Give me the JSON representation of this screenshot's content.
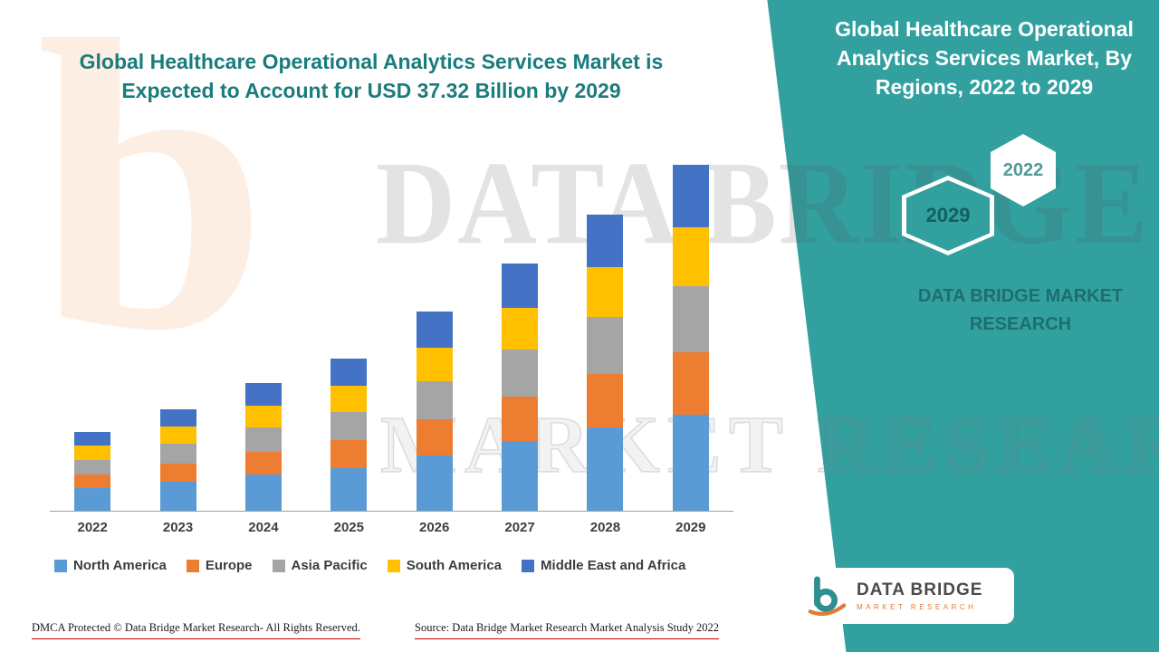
{
  "headline": "Global Healthcare Operational Analytics Services Market is Expected to Account for USD 37.32 Billion by 2029",
  "right_panel": {
    "title": "Global Healthcare Operational Analytics Services Market, By Regions, 2022 to 2029",
    "hex_2022": "2022",
    "hex_2029": "2029",
    "brand_text": "DATA BRIDGE MARKET RESEARCH",
    "teal": "#33A0A0"
  },
  "watermark": {
    "letter": "b",
    "line1": "DATA BRIDGE",
    "line2": "MARKET RESEARCH"
  },
  "logo": {
    "name": "DATA BRIDGE",
    "sub": "MARKET RESEARCH"
  },
  "footer": {
    "dmca": "DMCA Protected © Data Bridge Market Research- All Rights Reserved.",
    "source": "Source: Data Bridge Market Research Market Analysis Study 2022"
  },
  "chart_data": {
    "type": "bar",
    "stacked": true,
    "title": "Global Healthcare Operational Analytics Services Market, By Regions, 2022 to 2029",
    "xlabel": "",
    "ylabel": "",
    "grid": false,
    "legend_position": "bottom",
    "ylim": [
      0,
      40
    ],
    "units": "USD Billion",
    "total_2029": 37.32,
    "categories": [
      "2022",
      "2023",
      "2024",
      "2025",
      "2026",
      "2027",
      "2028",
      "2029"
    ],
    "series": [
      {
        "name": "North America",
        "color": "#5B9BD5",
        "values": [
          2.4,
          3.1,
          3.9,
          4.6,
          6.0,
          7.5,
          9.0,
          10.4
        ]
      },
      {
        "name": "Europe",
        "color": "#ED7D31",
        "values": [
          1.5,
          2.0,
          2.5,
          3.0,
          3.9,
          4.8,
          5.8,
          6.7
        ]
      },
      {
        "name": "Asia Pacific",
        "color": "#A5A5A5",
        "values": [
          1.6,
          2.1,
          2.6,
          3.1,
          4.1,
          5.1,
          6.1,
          7.1
        ]
      },
      {
        "name": "South America",
        "color": "#FFC000",
        "values": [
          1.5,
          1.9,
          2.3,
          2.8,
          3.6,
          4.5,
          5.4,
          6.4
        ]
      },
      {
        "name": "Middle East and Africa",
        "color": "#4472C4",
        "values": [
          1.5,
          1.9,
          2.5,
          2.9,
          3.9,
          4.8,
          5.7,
          6.72
        ]
      }
    ]
  }
}
